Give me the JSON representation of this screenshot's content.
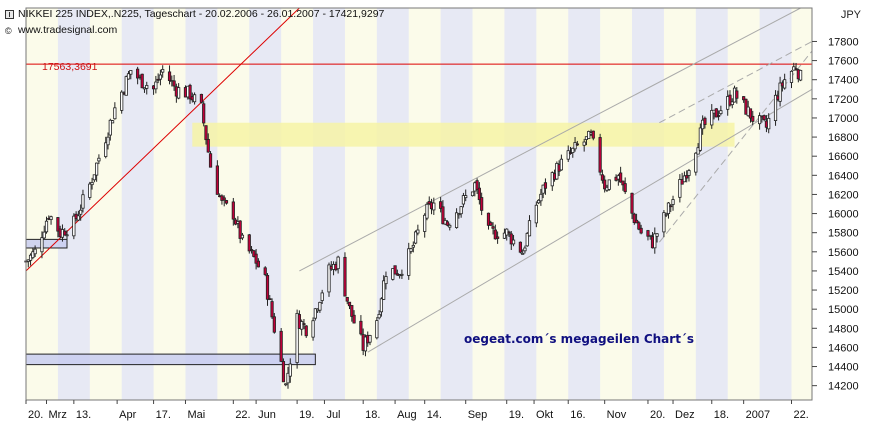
{
  "header": {
    "title": "NIKKEI 225 INDEX,.N225, Tageschart - 20.02.2006 - 26.01.2007 - 17421,9297",
    "source": "www.tradesignal.com",
    "currency": "JPY"
  },
  "annotations": {
    "reference_level_label": "17563,3691",
    "watermark": "oegeat.com´s megageilen Chart´s"
  },
  "chart_data": {
    "type": "candlestick",
    "title": "NIKKEI 225 INDEX,.N225, Tageschart - 20.02.2006 - 26.01.2007 - 17421,9297",
    "y_unit": "JPY",
    "ylim": [
      14050,
      18150
    ],
    "y_ticks": [
      14200,
      14400,
      14600,
      14800,
      15000,
      15200,
      15400,
      15600,
      15800,
      16000,
      16200,
      16400,
      16600,
      16800,
      17000,
      17200,
      17400,
      17600,
      17800
    ],
    "x_range": [
      "2006-02-20",
      "2007-01-31"
    ],
    "x_tick_labels": [
      {
        "date": "2006-02-20",
        "label": "20."
      },
      {
        "date": "2006-03-01",
        "label": "Mrz"
      },
      {
        "date": "2006-03-13",
        "label": "13."
      },
      {
        "date": "2006-04-01",
        "label": "Apr"
      },
      {
        "date": "2006-04-17",
        "label": "17."
      },
      {
        "date": "2006-05-01",
        "label": "Mai"
      },
      {
        "date": "2006-05-22",
        "label": "22."
      },
      {
        "date": "2006-06-01",
        "label": "Jun"
      },
      {
        "date": "2006-06-19",
        "label": "19."
      },
      {
        "date": "2006-07-01",
        "label": "Jul"
      },
      {
        "date": "2006-07-18",
        "label": "18."
      },
      {
        "date": "2006-08-01",
        "label": "Aug"
      },
      {
        "date": "2006-08-14",
        "label": "14."
      },
      {
        "date": "2006-09-01",
        "label": "Sep"
      },
      {
        "date": "2006-09-19",
        "label": "19."
      },
      {
        "date": "2006-10-01",
        "label": "Okt"
      },
      {
        "date": "2006-10-16",
        "label": "16."
      },
      {
        "date": "2006-11-01",
        "label": "Nov"
      },
      {
        "date": "2006-11-20",
        "label": "20."
      },
      {
        "date": "2006-12-01",
        "label": "Dez"
      },
      {
        "date": "2006-12-18",
        "label": "18."
      },
      {
        "date": "2007-01-01",
        "label": "2007"
      },
      {
        "date": "2007-01-22",
        "label": "22."
      }
    ],
    "price_path": [
      [
        "2006-02-20",
        15500
      ],
      [
        "2006-02-24",
        15600
      ],
      [
        "2006-03-02",
        16000
      ],
      [
        "2006-03-07",
        15800
      ],
      [
        "2006-03-13",
        15900
      ],
      [
        "2006-03-20",
        16300
      ],
      [
        "2006-03-27",
        16800
      ],
      [
        "2006-03-31",
        17100
      ],
      [
        "2006-04-07",
        17500
      ],
      [
        "2006-04-11",
        17400
      ],
      [
        "2006-04-17",
        17300
      ],
      [
        "2006-04-21",
        17500
      ],
      [
        "2006-04-27",
        17300
      ],
      [
        "2006-05-03",
        17250
      ],
      [
        "2006-05-08",
        17100
      ],
      [
        "2006-05-12",
        16500
      ],
      [
        "2006-05-17",
        16100
      ],
      [
        "2006-05-22",
        16000
      ],
      [
        "2006-05-26",
        15700
      ],
      [
        "2006-06-01",
        15500
      ],
      [
        "2006-06-05",
        15300
      ],
      [
        "2006-06-09",
        14800
      ],
      [
        "2006-06-14",
        14200
      ],
      [
        "2006-06-19",
        14900
      ],
      [
        "2006-06-23",
        14800
      ],
      [
        "2006-06-27",
        15000
      ],
      [
        "2006-07-03",
        15400
      ],
      [
        "2006-07-07",
        15500
      ],
      [
        "2006-07-12",
        15000
      ],
      [
        "2006-07-18",
        14600
      ],
      [
        "2006-07-24",
        14900
      ],
      [
        "2006-07-28",
        15400
      ],
      [
        "2006-08-03",
        15400
      ],
      [
        "2006-08-08",
        15600
      ],
      [
        "2006-08-14",
        16000
      ],
      [
        "2006-08-18",
        16100
      ],
      [
        "2006-08-24",
        15900
      ],
      [
        "2006-08-30",
        16100
      ],
      [
        "2006-09-05",
        16300
      ],
      [
        "2006-09-11",
        15800
      ],
      [
        "2006-09-19",
        15800
      ],
      [
        "2006-09-26",
        15600
      ],
      [
        "2006-10-02",
        16100
      ],
      [
        "2006-10-06",
        16300
      ],
      [
        "2006-10-12",
        16500
      ],
      [
        "2006-10-16",
        16600
      ],
      [
        "2006-10-20",
        16700
      ],
      [
        "2006-10-26",
        16800
      ],
      [
        "2006-11-01",
        16300
      ],
      [
        "2006-11-07",
        16400
      ],
      [
        "2006-11-13",
        16000
      ],
      [
        "2006-11-17",
        15800
      ],
      [
        "2006-11-22",
        15700
      ],
      [
        "2006-11-28",
        16000
      ],
      [
        "2006-12-04",
        16300
      ],
      [
        "2006-12-08",
        16500
      ],
      [
        "2006-12-14",
        16900
      ],
      [
        "2006-12-18",
        17000
      ],
      [
        "2006-12-22",
        17100
      ],
      [
        "2006-12-28",
        17250
      ],
      [
        "2007-01-05",
        17000
      ],
      [
        "2007-01-11",
        16900
      ],
      [
        "2007-01-15",
        17200
      ],
      [
        "2007-01-19",
        17400
      ],
      [
        "2007-01-24",
        17550
      ],
      [
        "2007-01-26",
        17421.93
      ]
    ],
    "lines": [
      {
        "name": "17563,3691",
        "kind": "horizontal",
        "y": 17563.3691,
        "color": "#dd0000"
      },
      {
        "kind": "trend",
        "color": "#dd0000",
        "from": [
          "2006-02-20",
          15400
        ],
        "to": [
          "2006-06-20",
          18150
        ]
      },
      {
        "kind": "channel-upper",
        "color": "#aaaaaa",
        "from": [
          "2006-06-20",
          15400
        ],
        "to": [
          "2007-01-26",
          18150
        ]
      },
      {
        "kind": "channel-lower",
        "color": "#aaaaaa",
        "from": [
          "2006-07-20",
          14550
        ],
        "to": [
          "2007-01-31",
          17300
        ]
      },
      {
        "kind": "dashed",
        "color": "#aaaaaa",
        "from": [
          "2006-11-25",
          16950
        ],
        "to": [
          "2007-01-31",
          17800
        ]
      },
      {
        "kind": "dashed",
        "color": "#aaaaaa",
        "from": [
          "2006-11-25",
          15700
        ],
        "to": [
          "2007-01-31",
          17700
        ]
      }
    ],
    "zones": [
      {
        "color": "#f6f3a6",
        "from": "2006-05-04",
        "to": "2006-12-28",
        "y": [
          16700,
          16950
        ]
      },
      {
        "color": "#c8cdf0",
        "from": "2006-02-20",
        "to": "2006-06-27",
        "y": [
          14420,
          14530
        ]
      },
      {
        "color": "#c8cdf0",
        "from": "2006-02-20",
        "to": "2006-03-10",
        "y": [
          15640,
          15730
        ]
      }
    ]
  }
}
